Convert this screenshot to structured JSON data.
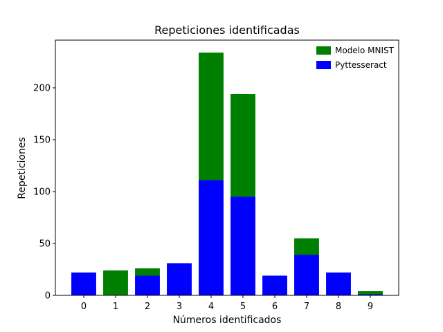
{
  "chart_data": {
    "type": "bar",
    "stacked": true,
    "title": "Repeticiones identificadas",
    "xlabel": "Números identificados",
    "ylabel": "Repeticiones",
    "categories": [
      "0",
      "1",
      "2",
      "3",
      "4",
      "5",
      "6",
      "7",
      "8",
      "9"
    ],
    "series": [
      {
        "name": "Pyttesseract",
        "color": "#0000ff",
        "values": [
          22,
          0,
          19,
          31,
          111,
          95,
          19,
          39,
          22,
          1
        ]
      },
      {
        "name": "Modelo MNIST",
        "color": "#008000",
        "values": [
          0,
          24,
          7,
          0,
          123,
          99,
          0,
          16,
          0,
          3
        ]
      }
    ],
    "yticks": [
      0,
      50,
      100,
      150,
      200
    ],
    "ylim": [
      0,
      246
    ],
    "grid": false,
    "legend_position": "top-right"
  }
}
